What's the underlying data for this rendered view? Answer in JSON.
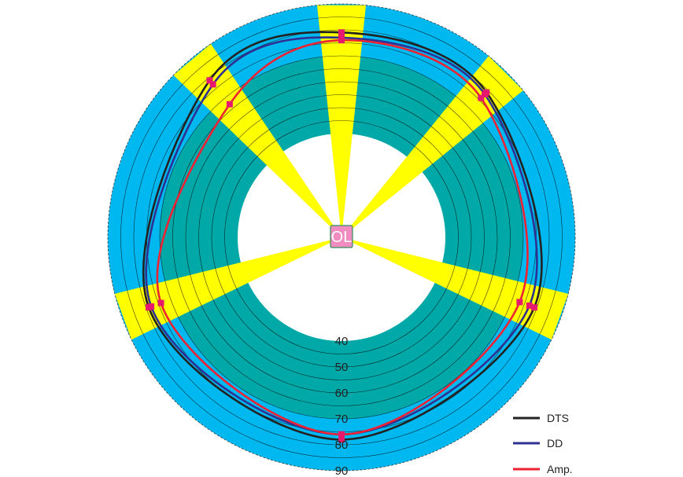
{
  "chart_data": {
    "type": "polar-line",
    "ring_labels": [
      "40",
      "50",
      "60",
      "70",
      "80",
      "90"
    ],
    "radial_range": [
      20,
      90
    ],
    "center_label": "OL",
    "colors": {
      "outer_band": "#00b8f0",
      "inner_band": "#00a8a8",
      "sector": "#ffff00",
      "grid": "#000000"
    },
    "bands": [
      {
        "from": 40,
        "to": 70,
        "color": "#00a8a8"
      },
      {
        "from": 70,
        "to": 90,
        "color": "#00b8f0"
      }
    ],
    "sectors_deg": [
      {
        "center": 0,
        "width": 12
      },
      {
        "center": 45,
        "width": 12
      },
      {
        "center": 110,
        "width": 12
      },
      {
        "center": 250,
        "width": 12
      },
      {
        "center": 320,
        "width": 12
      }
    ],
    "legend": [
      "DTS",
      "DD",
      "Amp."
    ],
    "series": [
      {
        "name": "DTS",
        "color": "#222222",
        "points": [
          [
            0,
            79
          ],
          [
            45,
            79
          ],
          [
            110,
            79
          ],
          [
            180,
            78
          ],
          [
            250,
            79
          ],
          [
            320,
            79
          ]
        ]
      },
      {
        "name": "DD",
        "color": "#2e3192",
        "points": [
          [
            0,
            77
          ],
          [
            45,
            78
          ],
          [
            110,
            77
          ],
          [
            180,
            76
          ],
          [
            250,
            78
          ],
          [
            320,
            77
          ]
        ]
      },
      {
        "name": "Amp.",
        "color": "#ee2233",
        "points": [
          [
            0,
            76
          ],
          [
            45,
            76
          ],
          [
            110,
            73
          ],
          [
            180,
            76
          ],
          [
            250,
            74
          ],
          [
            320,
            67
          ]
        ]
      }
    ],
    "marker_color": "#e6196e"
  }
}
